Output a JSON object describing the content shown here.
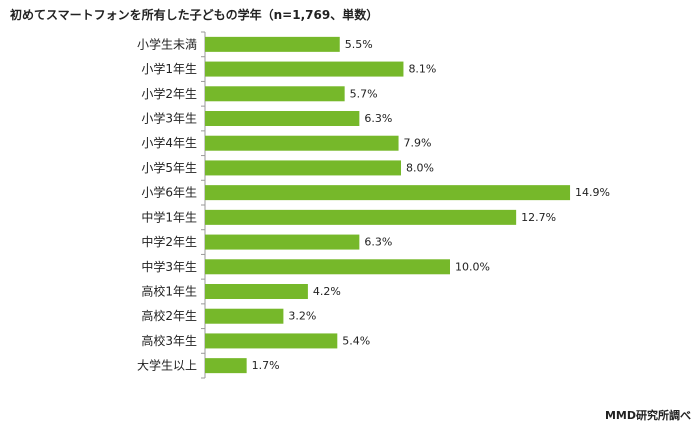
{
  "chart_data": {
    "type": "bar",
    "orientation": "horizontal",
    "title": "初めてスマートフォンを所有した子どもの学年（n=1,769、単数）",
    "categories": [
      "小学生未満",
      "小学1年生",
      "小学2年生",
      "小学3年生",
      "小学4年生",
      "小学5年生",
      "小学6年生",
      "中学1年生",
      "中学2年生",
      "中学3年生",
      "高校1年生",
      "高校2年生",
      "高校3年生",
      "大学生以上"
    ],
    "values": [
      5.5,
      8.1,
      5.7,
      6.3,
      7.9,
      8.0,
      14.9,
      12.7,
      6.3,
      10.0,
      4.2,
      3.2,
      5.4,
      1.7
    ],
    "value_labels": [
      "5.5%",
      "8.1%",
      "5.7%",
      "6.3%",
      "7.9%",
      "8.0%",
      "14.9%",
      "12.7%",
      "6.3%",
      "10.0%",
      "4.2%",
      "3.2%",
      "5.4%",
      "1.7%"
    ],
    "unit": "%",
    "xlim": [
      0,
      16
    ],
    "grid": false,
    "bar_color": "#76b82a",
    "axis_color": "#999999"
  },
  "source_note": "MMD研究所調べ"
}
